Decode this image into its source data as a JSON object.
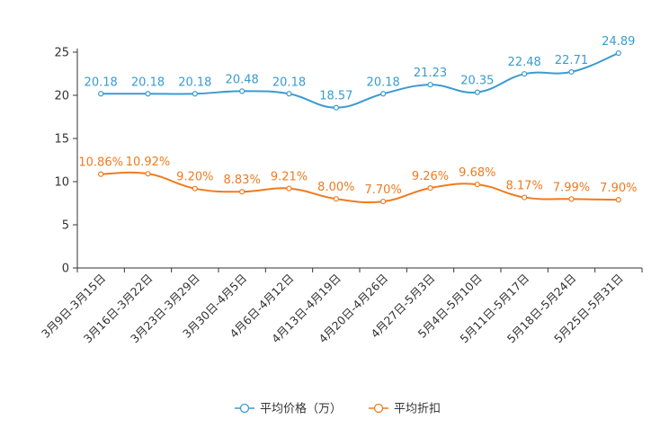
{
  "chart_data": {
    "type": "line",
    "title": "",
    "xlabel": "",
    "ylabel": "",
    "ylim": [
      0,
      25
    ],
    "yticks": [
      0,
      5,
      10,
      15,
      20,
      25
    ],
    "grid": false,
    "legend_position": "bottom-center",
    "categories": [
      "3月9日-3月15日",
      "3月16日-3月22日",
      "3月23日-3月29日",
      "3月30日-4月5日",
      "4月6日-4月12日",
      "4月13日-4月19日",
      "4月20日-4月26日",
      "4月27日-5月3日",
      "5月4日-5月10日",
      "5月11日-5月17日",
      "5月18日-5月24日",
      "5月25日-5月31日"
    ],
    "series": [
      {
        "name": "平均价格（万）",
        "color": "#3b9bd0",
        "values": [
          20.18,
          20.18,
          20.18,
          20.48,
          20.18,
          18.57,
          20.18,
          21.23,
          20.35,
          22.48,
          22.71,
          24.89
        ],
        "labels": [
          "20.18",
          "20.18",
          "20.18",
          "20.48",
          "20.18",
          "18.57",
          "20.18",
          "21.23",
          "20.35",
          "22.48",
          "22.71",
          "24.89"
        ]
      },
      {
        "name": "平均折扣",
        "color": "#f07b1f",
        "values": [
          10.86,
          10.92,
          9.2,
          8.83,
          9.21,
          8.0,
          7.7,
          9.26,
          9.68,
          8.17,
          7.99,
          7.9
        ],
        "labels": [
          "10.86%",
          "10.92%",
          "9.20%",
          "8.83%",
          "9.21%",
          "8.00%",
          "7.70%",
          "9.26%",
          "9.68%",
          "8.17%",
          "7.99%",
          "7.90%"
        ]
      }
    ]
  }
}
